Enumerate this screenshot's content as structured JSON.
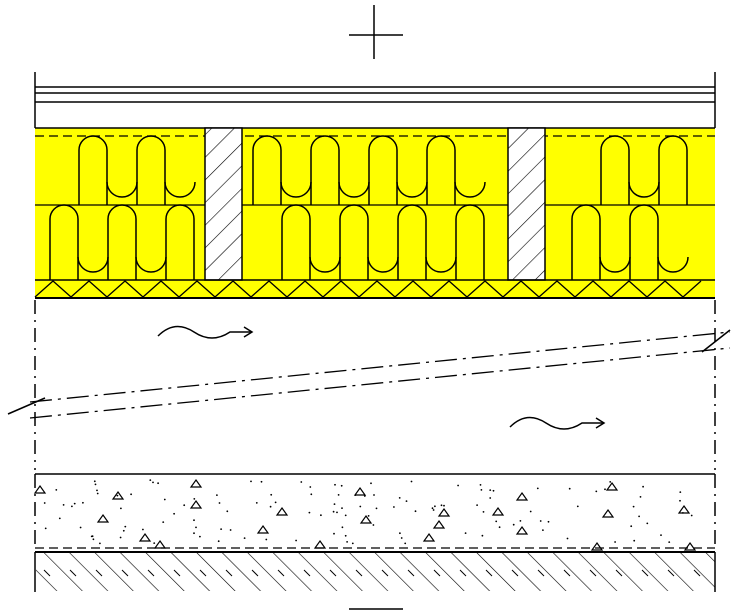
{
  "drawing": {
    "type": "construction-section-detail",
    "layers_top_to_bottom": [
      "cladding-boards",
      "mineral-wool-insulation-with-timber-battens",
      "triangle-strip-layer",
      "ventilated-air-gap",
      "concrete-layer",
      "ground"
    ],
    "stud_count": 2,
    "wool_rows": 2,
    "airflow_arrow_count": 2,
    "symbols": [
      "plus-sign",
      "minus-sign"
    ]
  },
  "colors": {
    "background": "#ffffff",
    "line": "#000000",
    "insulation": "#ffff00",
    "stud": "#ffffff"
  }
}
